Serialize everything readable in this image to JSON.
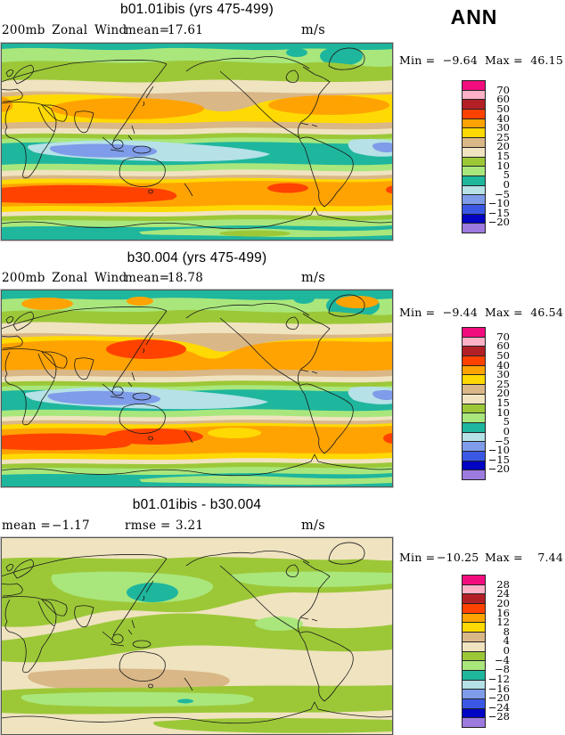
{
  "header": {
    "season": "ANN"
  },
  "palette": [
    "#F20D7F",
    "#FFB1C7",
    "#B22026",
    "#FF4200",
    "#FFA303",
    "#FFD903",
    "#D9B787",
    "#F0E3C0",
    "#9CC838",
    "#A9E77C",
    "#1FB69E",
    "#B5E1E7",
    "#7E9CE9",
    "#3B58E5",
    "#0104C2",
    "#9C7ADE"
  ],
  "panels": [
    {
      "title": "b01.01ibis (yrs 475-499)",
      "field_label": "200mb Zonal Wind",
      "stats": [
        {
          "label": "mean=",
          "value": "17.61"
        }
      ],
      "units": "m/s",
      "legend": {
        "min_label": "Min =",
        "min": "−9.64",
        "max_label": "Max =",
        "max": "46.15",
        "levels": [
          "70",
          "60",
          "50",
          "40",
          "30",
          "25",
          "20",
          "15",
          "10",
          "5",
          "0",
          "−5",
          "−10",
          "−15",
          "−20"
        ]
      }
    },
    {
      "title": "b30.004 (yrs 475-499)",
      "field_label": "200mb Zonal Wind",
      "stats": [
        {
          "label": "mean=",
          "value": "18.78"
        }
      ],
      "units": "m/s",
      "legend": {
        "min_label": "Min =",
        "min": "−9.44",
        "max_label": "Max =",
        "max": "46.54",
        "levels": [
          "70",
          "60",
          "50",
          "40",
          "30",
          "25",
          "20",
          "15",
          "10",
          "5",
          "0",
          "−5",
          "−10",
          "−15",
          "−20"
        ]
      }
    },
    {
      "title": "b01.01ibis - b30.004",
      "field_label": "",
      "stats": [
        {
          "label": "mean =",
          "value": "−1.17"
        },
        {
          "label": "rmse =",
          "value": "3.21"
        }
      ],
      "units": "m/s",
      "legend": {
        "min_label": "Min =",
        "min": "−10.25",
        "max_label": "Max =",
        "max": "7.44",
        "levels": [
          "28",
          "24",
          "20",
          "16",
          "12",
          "8",
          "4",
          "0",
          "−4",
          "−8",
          "−12",
          "−16",
          "−20",
          "−24",
          "−28"
        ]
      }
    }
  ],
  "chart_data": [
    {
      "type": "heatmap",
      "subtype": "filled-contour world map (cylindrical, lon 0-360E, lat 90N-90S, Pacific-centered)",
      "title": "b01.01ibis (yrs 475-499)",
      "variable": "200mb Zonal Wind",
      "units": "m/s",
      "season": "ANN",
      "mean": 17.61,
      "min": -9.64,
      "max": 46.15,
      "contour_levels": [
        -20,
        -15,
        -10,
        -5,
        0,
        5,
        10,
        15,
        20,
        25,
        30,
        40,
        50,
        60,
        70
      ],
      "palette_high_to_low": [
        "#F20D7F",
        "#FFB1C7",
        "#B22026",
        "#FF4200",
        "#FFA303",
        "#FFD903",
        "#D9B787",
        "#F0E3C0",
        "#9CC838",
        "#A9E77C",
        "#1FB69E",
        "#B5E1E7",
        "#7E9CE9",
        "#3B58E5",
        "#0104C2",
        "#9C7ADE"
      ],
      "notes": "Westerly jets (orange, 30-40 m/s) near 30N over Asia/Japan and N America/Atlantic; strong SH jet with red-orange core (40-50) south of Australia; equatorial easterlies (blue, -10 to -5) over Indian Ocean/Indonesia; teal (0-5) polar bands"
    },
    {
      "type": "heatmap",
      "subtype": "filled-contour world map (cylindrical, lon 0-360E, lat 90N-90S, Pacific-centered)",
      "title": "b30.004 (yrs 475-499)",
      "variable": "200mb Zonal Wind",
      "units": "m/s",
      "season": "ANN",
      "mean": 18.78,
      "min": -9.44,
      "max": 46.54,
      "contour_levels": [
        -20,
        -15,
        -10,
        -5,
        0,
        5,
        10,
        15,
        20,
        25,
        30,
        40,
        50,
        60,
        70
      ],
      "notes": "Similar to b01.01ibis but NH jet core over Japan exceeds 40 m/s (red-orange); broader orange jet bands in both hemispheres; small orange patches at high northern latitudes"
    },
    {
      "type": "heatmap",
      "subtype": "filled-contour world map difference plot",
      "title": "b01.01ibis - b30.004",
      "variable": "200mb Zonal Wind difference",
      "units": "m/s",
      "season": "ANN",
      "mean": -1.17,
      "rmse": 3.21,
      "min": -10.25,
      "max": 7.44,
      "contour_levels": [
        -28,
        -24,
        -20,
        -16,
        -12,
        -8,
        -4,
        0,
        4,
        8,
        12,
        16,
        20,
        24,
        28
      ],
      "notes": "Mostly between -4 and +4 (beige/olive); teal minimum (-12 to -8) over Japan/Korea; light-green -8 to -4 bands at midlatitudes; tan +4 to +8 band south of Australia/New Zealand"
    }
  ]
}
